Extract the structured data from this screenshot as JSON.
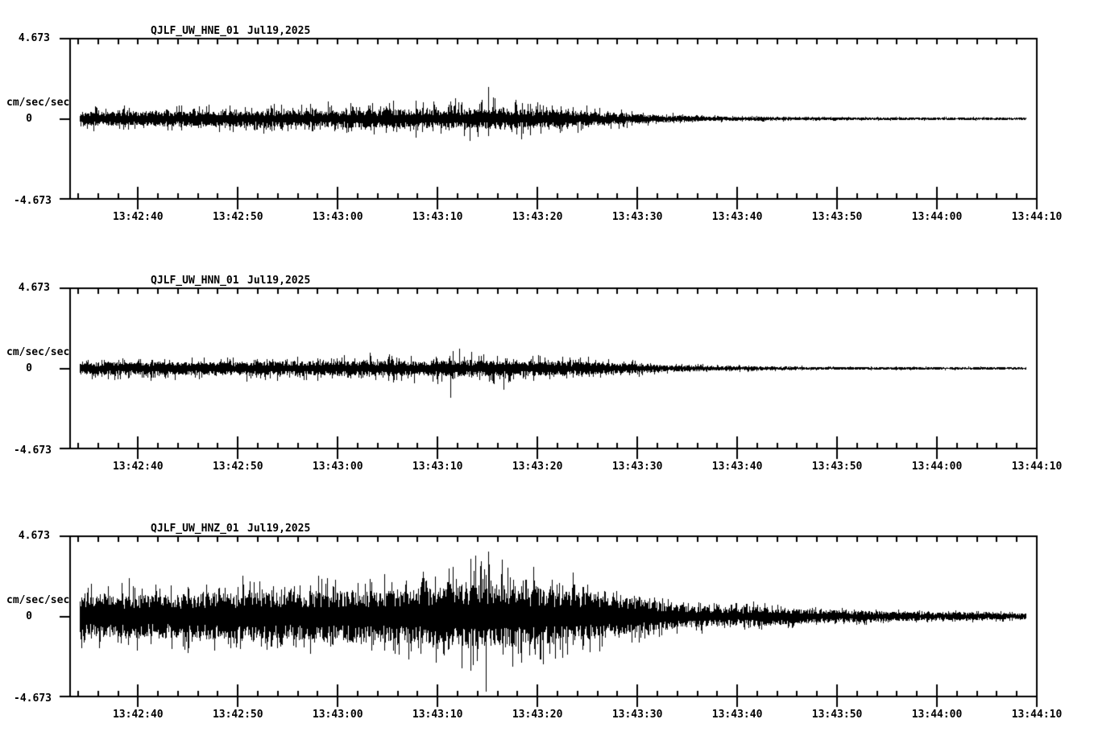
{
  "figure": {
    "background_color": "#ffffff",
    "trace_color": "#000000",
    "text_color": "#000000"
  },
  "chart_data": [
    {
      "type": "line",
      "subtype": "seismogram",
      "station": "QJLF_UW_HNE_01",
      "date": "Jul19,2025",
      "ylabel": "cm/sec/sec",
      "ylim": [
        -4.673,
        4.673
      ],
      "y_tick_labels": [
        "4.673",
        "0",
        "-4.673"
      ],
      "x_tick_labels": [
        "13:42:40",
        "13:42:50",
        "13:43:00",
        "13:43:10",
        "13:43:20",
        "13:43:30",
        "13:43:40",
        "13:43:50",
        "13:44:00",
        "13:44:10"
      ],
      "x_window_start": "13:42:33",
      "x_window_end": "13:44:10",
      "x_major_interval_s": 10,
      "x_minor_interval_s": 2,
      "first_major_tick_offset_s": 6.8,
      "trace_start_s": 0.95,
      "trace_end_s": 95.7,
      "noise_seed": 7,
      "envelope": [
        [
          0.95,
          0.33,
          0.8
        ],
        [
          6,
          0.35,
          0.85
        ],
        [
          14,
          0.37,
          0.9
        ],
        [
          22,
          0.4,
          1.0
        ],
        [
          30,
          0.44,
          1.1
        ],
        [
          36,
          0.46,
          1.2
        ],
        [
          40,
          0.48,
          1.35
        ],
        [
          42,
          0.5,
          1.45
        ],
        [
          45,
          0.46,
          1.25
        ],
        [
          49,
          0.4,
          1.05
        ],
        [
          53,
          0.32,
          0.8
        ],
        [
          56,
          0.24,
          0.6
        ],
        [
          59,
          0.18,
          0.42
        ],
        [
          62,
          0.13,
          0.3
        ],
        [
          66,
          0.1,
          0.22
        ],
        [
          72,
          0.08,
          0.16
        ],
        [
          80,
          0.065,
          0.13
        ],
        [
          90,
          0.06,
          0.11
        ],
        [
          95.7,
          0.055,
          0.1
        ]
      ],
      "spike_events": [
        [
          41.9,
          1.85
        ],
        [
          40.0,
          -1.25
        ],
        [
          44.6,
          1.1
        ]
      ]
    },
    {
      "type": "line",
      "subtype": "seismogram",
      "station": "QJLF_UW_HNN_01",
      "date": "Jul19,2025",
      "ylabel": "cm/sec/sec",
      "ylim": [
        -4.673,
        4.673
      ],
      "y_tick_labels": [
        "4.673",
        "0",
        "-4.673"
      ],
      "x_tick_labels": [
        "13:42:40",
        "13:42:50",
        "13:43:00",
        "13:43:10",
        "13:43:20",
        "13:43:30",
        "13:43:40",
        "13:43:50",
        "13:44:00",
        "13:44:10"
      ],
      "x_window_start": "13:42:33",
      "x_window_end": "13:44:10",
      "x_major_interval_s": 10,
      "x_minor_interval_s": 2,
      "first_major_tick_offset_s": 6.8,
      "trace_start_s": 0.95,
      "trace_end_s": 95.7,
      "noise_seed": 13,
      "envelope": [
        [
          0.95,
          0.3,
          0.72
        ],
        [
          8,
          0.32,
          0.78
        ],
        [
          16,
          0.33,
          0.82
        ],
        [
          24,
          0.35,
          0.88
        ],
        [
          31,
          0.36,
          0.95
        ],
        [
          37,
          0.38,
          1.08
        ],
        [
          42,
          0.38,
          1.05
        ],
        [
          47,
          0.36,
          0.95
        ],
        [
          51,
          0.32,
          0.8
        ],
        [
          55,
          0.26,
          0.62
        ],
        [
          58,
          0.2,
          0.46
        ],
        [
          61,
          0.15,
          0.33
        ],
        [
          65,
          0.11,
          0.24
        ],
        [
          70,
          0.085,
          0.17
        ],
        [
          78,
          0.07,
          0.13
        ],
        [
          88,
          0.06,
          0.11
        ],
        [
          95.7,
          0.055,
          0.1
        ]
      ],
      "spike_events": [
        [
          38.1,
          -1.7
        ],
        [
          43.4,
          -1.2
        ],
        [
          39.0,
          1.15
        ]
      ]
    },
    {
      "type": "line",
      "subtype": "seismogram",
      "station": "QJLF_UW_HNZ_01",
      "date": "Jul19,2025",
      "ylabel": "cm/sec/sec",
      "ylim": [
        -4.673,
        4.673
      ],
      "y_tick_labels": [
        "4.673",
        "0",
        "-4.673"
      ],
      "x_tick_labels": [
        "13:42:40",
        "13:42:50",
        "13:43:00",
        "13:43:10",
        "13:43:20",
        "13:43:30",
        "13:43:40",
        "13:43:50",
        "13:44:00",
        "13:44:10"
      ],
      "x_window_start": "13:42:33",
      "x_window_end": "13:44:10",
      "x_major_interval_s": 10,
      "x_minor_interval_s": 2,
      "first_major_tick_offset_s": 6.8,
      "trace_start_s": 0.95,
      "trace_end_s": 95.7,
      "noise_seed": 29,
      "envelope": [
        [
          0.95,
          0.95,
          2.1
        ],
        [
          6,
          1.05,
          2.25
        ],
        [
          12,
          1.1,
          2.35
        ],
        [
          18,
          1.15,
          2.45
        ],
        [
          24,
          1.2,
          2.55
        ],
        [
          30,
          1.28,
          2.7
        ],
        [
          34,
          1.32,
          2.8
        ],
        [
          38,
          1.45,
          3.1
        ],
        [
          41,
          1.6,
          3.7
        ],
        [
          43,
          1.55,
          3.5
        ],
        [
          46,
          1.42,
          3.1
        ],
        [
          49,
          1.3,
          2.8
        ],
        [
          52,
          1.15,
          2.5
        ],
        [
          55,
          0.95,
          2.1
        ],
        [
          58,
          0.75,
          1.6
        ],
        [
          61,
          0.58,
          1.25
        ],
        [
          64,
          0.47,
          1.0
        ],
        [
          67,
          0.44,
          0.95
        ],
        [
          69,
          0.47,
          1.05
        ],
        [
          71,
          0.4,
          0.88
        ],
        [
          74,
          0.34,
          0.72
        ],
        [
          78,
          0.28,
          0.58
        ],
        [
          82,
          0.24,
          0.5
        ],
        [
          87,
          0.2,
          0.42
        ],
        [
          92,
          0.17,
          0.36
        ],
        [
          95.7,
          0.16,
          0.33
        ]
      ],
      "spike_events": [
        [
          41.6,
          -4.35
        ],
        [
          41.9,
          3.8
        ],
        [
          40.6,
          3.55
        ],
        [
          43.2,
          3.3
        ],
        [
          39.2,
          -3.0
        ],
        [
          46.4,
          2.9
        ],
        [
          36.6,
          -2.7
        ],
        [
          50.3,
          2.55
        ]
      ]
    }
  ]
}
